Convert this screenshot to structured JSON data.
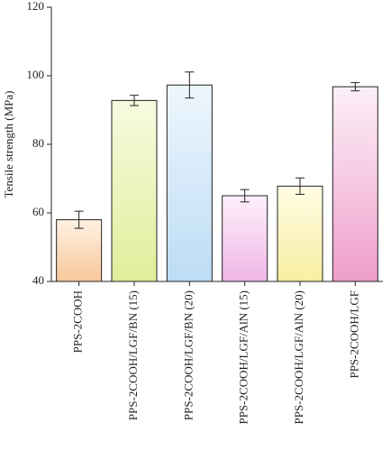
{
  "chart_data": {
    "type": "bar",
    "title": "",
    "xlabel": "",
    "ylabel": "Tensile strength (MPa)",
    "ylim": [
      40,
      120
    ],
    "yticks": [
      40,
      60,
      80,
      100,
      120
    ],
    "grid": false,
    "categories": [
      "PPS-2COOH",
      "PPS-2COOH/LGF/BN (15)",
      "PPS-2COOH/LGF/BN (20)",
      "PPS-2COOH/LGF/AlN (15)",
      "PPS-2COOH/LGF/AlN (20)",
      "PPS-2COOH/LGF"
    ],
    "values": [
      58.0,
      92.8,
      97.3,
      65.0,
      67.8,
      96.8
    ],
    "errors": [
      2.5,
      1.5,
      3.8,
      1.8,
      2.4,
      1.2
    ],
    "colors": [
      [
        "#fff1e4",
        "#f9c79a"
      ],
      [
        "#f6fbe0",
        "#e0ee9a"
      ],
      [
        "#eef6fd",
        "#bcdcf5"
      ],
      [
        "#fdf0fb",
        "#f0b6e6"
      ],
      [
        "#fffce6",
        "#f7ef9e"
      ],
      [
        "#fdf0f7",
        "#ee9ecb"
      ]
    ]
  }
}
